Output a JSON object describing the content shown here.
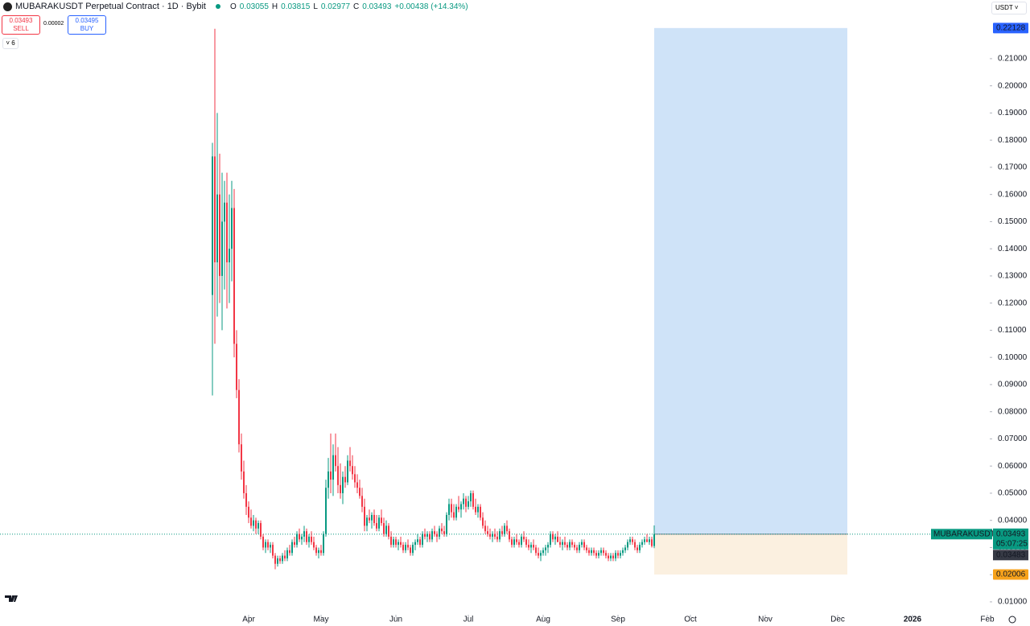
{
  "chart_data": {
    "type": "candlestick",
    "title": "MUBARAKUSDT Perpetual Contract · 1D · Bybit",
    "ohlc_keys": [
      "O",
      "H",
      "L",
      "C"
    ],
    "change": "+0.00438 (+14.34%)",
    "sell_label": "SELL",
    "buy_label": "BUY",
    "buy_price": 0.03495,
    "spread": "0.00002",
    "indicators_count": 6,
    "currency": "USDT",
    "symbol_label": "MUBARAKUSDT.P",
    "countdown": "05:07:25",
    "mark_price": 0.03483,
    "up_color": "#089981",
    "down_color": "#f23645",
    "x": [
      0,
      1,
      2,
      3,
      4,
      5,
      6,
      7,
      8,
      9,
      10,
      11,
      12,
      13,
      14,
      15,
      16,
      17,
      18,
      19,
      20,
      21,
      22,
      23,
      24,
      25,
      26,
      27,
      28,
      29,
      30,
      31,
      32,
      33,
      34,
      35,
      36,
      37,
      38,
      39,
      40,
      41,
      42,
      43,
      44,
      45,
      46,
      47,
      48,
      49,
      50,
      51,
      52,
      53,
      54,
      55,
      56,
      57,
      58,
      59,
      60,
      61,
      62,
      63,
      64,
      65,
      66,
      67,
      68,
      69,
      70,
      71,
      72,
      73,
      74,
      75,
      76,
      77,
      78,
      79,
      80,
      81,
      82,
      83,
      84,
      85,
      86,
      87,
      88,
      89,
      90,
      91,
      92,
      93,
      94,
      95,
      96,
      97,
      98,
      99,
      100,
      101,
      102,
      103,
      104,
      105,
      106,
      107,
      108,
      109,
      110,
      111,
      112,
      113,
      114,
      115,
      116,
      117,
      118,
      119,
      120,
      121,
      122,
      123,
      124,
      125,
      126,
      127,
      128,
      129,
      130,
      131,
      132,
      133,
      134,
      135,
      136,
      137,
      138,
      139,
      140,
      141,
      142,
      143,
      144,
      145,
      146,
      147,
      148,
      149,
      150,
      151,
      152,
      153,
      154,
      155,
      156,
      157,
      158,
      159,
      160,
      161,
      162,
      163,
      164,
      165,
      166,
      167,
      168,
      169,
      170,
      171,
      172,
      173,
      174,
      175,
      176,
      177,
      178,
      179,
      180,
      181,
      182,
      183
    ],
    "candles": [
      [
        0.123,
        0.179,
        0.086,
        0.174
      ],
      [
        0.174,
        0.221,
        0.105,
        0.135
      ],
      [
        0.135,
        0.19,
        0.115,
        0.16
      ],
      [
        0.16,
        0.175,
        0.12,
        0.13
      ],
      [
        0.13,
        0.168,
        0.11,
        0.15
      ],
      [
        0.15,
        0.165,
        0.125,
        0.157
      ],
      [
        0.157,
        0.168,
        0.118,
        0.135
      ],
      [
        0.135,
        0.16,
        0.12,
        0.14
      ],
      [
        0.14,
        0.165,
        0.128,
        0.155
      ],
      [
        0.155,
        0.162,
        0.1,
        0.105
      ],
      [
        0.105,
        0.11,
        0.085,
        0.088
      ],
      [
        0.088,
        0.092,
        0.065,
        0.068
      ],
      [
        0.068,
        0.072,
        0.055,
        0.058
      ],
      [
        0.058,
        0.062,
        0.048,
        0.05
      ],
      [
        0.05,
        0.053,
        0.042,
        0.045
      ],
      [
        0.045,
        0.047,
        0.039,
        0.041
      ],
      [
        0.041,
        0.044,
        0.037,
        0.038
      ],
      [
        0.038,
        0.042,
        0.036,
        0.04
      ],
      [
        0.04,
        0.041,
        0.035,
        0.037
      ],
      [
        0.037,
        0.04,
        0.035,
        0.039
      ],
      [
        0.039,
        0.04,
        0.033,
        0.034
      ],
      [
        0.034,
        0.035,
        0.029,
        0.03
      ],
      [
        0.03,
        0.033,
        0.028,
        0.032
      ],
      [
        0.032,
        0.033,
        0.029,
        0.03
      ],
      [
        0.03,
        0.032,
        0.028,
        0.031
      ],
      [
        0.031,
        0.032,
        0.026,
        0.027
      ],
      [
        0.027,
        0.028,
        0.022,
        0.024
      ],
      [
        0.024,
        0.027,
        0.023,
        0.026
      ],
      [
        0.026,
        0.027,
        0.024,
        0.025
      ],
      [
        0.025,
        0.028,
        0.024,
        0.027
      ],
      [
        0.027,
        0.029,
        0.025,
        0.026
      ],
      [
        0.026,
        0.03,
        0.025,
        0.029
      ],
      [
        0.029,
        0.031,
        0.027,
        0.028
      ],
      [
        0.028,
        0.033,
        0.027,
        0.032
      ],
      [
        0.032,
        0.034,
        0.03,
        0.031
      ],
      [
        0.031,
        0.036,
        0.03,
        0.035
      ],
      [
        0.035,
        0.037,
        0.032,
        0.033
      ],
      [
        0.033,
        0.035,
        0.031,
        0.034
      ],
      [
        0.034,
        0.038,
        0.032,
        0.036
      ],
      [
        0.036,
        0.037,
        0.031,
        0.032
      ],
      [
        0.032,
        0.035,
        0.03,
        0.034
      ],
      [
        0.034,
        0.036,
        0.031,
        0.032
      ],
      [
        0.032,
        0.034,
        0.029,
        0.03
      ],
      [
        0.03,
        0.031,
        0.027,
        0.028
      ],
      [
        0.028,
        0.03,
        0.026,
        0.029
      ],
      [
        0.029,
        0.031,
        0.027,
        0.028
      ],
      [
        0.028,
        0.036,
        0.027,
        0.035
      ],
      [
        0.035,
        0.055,
        0.034,
        0.052
      ],
      [
        0.052,
        0.063,
        0.048,
        0.058
      ],
      [
        0.058,
        0.072,
        0.05,
        0.055
      ],
      [
        0.055,
        0.068,
        0.049,
        0.064
      ],
      [
        0.064,
        0.072,
        0.058,
        0.06
      ],
      [
        0.06,
        0.067,
        0.05,
        0.053
      ],
      [
        0.053,
        0.061,
        0.048,
        0.05
      ],
      [
        0.05,
        0.058,
        0.046,
        0.056
      ],
      [
        0.056,
        0.06,
        0.052,
        0.054
      ],
      [
        0.054,
        0.064,
        0.053,
        0.062
      ],
      [
        0.062,
        0.067,
        0.058,
        0.06
      ],
      [
        0.06,
        0.064,
        0.055,
        0.057
      ],
      [
        0.057,
        0.06,
        0.052,
        0.054
      ],
      [
        0.054,
        0.057,
        0.05,
        0.052
      ],
      [
        0.052,
        0.055,
        0.048,
        0.049
      ],
      [
        0.049,
        0.052,
        0.043,
        0.045
      ],
      [
        0.045,
        0.048,
        0.036,
        0.038
      ],
      [
        0.038,
        0.042,
        0.036,
        0.041
      ],
      [
        0.041,
        0.044,
        0.039,
        0.04
      ],
      [
        0.04,
        0.043,
        0.037,
        0.042
      ],
      [
        0.042,
        0.044,
        0.038,
        0.039
      ],
      [
        0.039,
        0.042,
        0.036,
        0.037
      ],
      [
        0.037,
        0.042,
        0.036,
        0.041
      ],
      [
        0.041,
        0.044,
        0.038,
        0.039
      ],
      [
        0.039,
        0.041,
        0.034,
        0.035
      ],
      [
        0.035,
        0.04,
        0.034,
        0.038
      ],
      [
        0.038,
        0.039,
        0.033,
        0.034
      ],
      [
        0.034,
        0.036,
        0.03,
        0.031
      ],
      [
        0.031,
        0.034,
        0.03,
        0.033
      ],
      [
        0.033,
        0.034,
        0.03,
        0.031
      ],
      [
        0.031,
        0.033,
        0.029,
        0.032
      ],
      [
        0.032,
        0.034,
        0.03,
        0.031
      ],
      [
        0.031,
        0.032,
        0.028,
        0.029
      ],
      [
        0.029,
        0.032,
        0.028,
        0.031
      ],
      [
        0.031,
        0.033,
        0.029,
        0.03
      ],
      [
        0.03,
        0.031,
        0.027,
        0.028
      ],
      [
        0.028,
        0.032,
        0.027,
        0.031
      ],
      [
        0.031,
        0.033,
        0.029,
        0.032
      ],
      [
        0.032,
        0.035,
        0.031,
        0.033
      ],
      [
        0.033,
        0.034,
        0.03,
        0.031
      ],
      [
        0.031,
        0.036,
        0.03,
        0.035
      ],
      [
        0.035,
        0.037,
        0.033,
        0.034
      ],
      [
        0.034,
        0.036,
        0.032,
        0.035
      ],
      [
        0.035,
        0.036,
        0.032,
        0.033
      ],
      [
        0.033,
        0.037,
        0.032,
        0.036
      ],
      [
        0.036,
        0.038,
        0.034,
        0.035
      ],
      [
        0.035,
        0.036,
        0.032,
        0.034
      ],
      [
        0.034,
        0.038,
        0.033,
        0.037
      ],
      [
        0.037,
        0.039,
        0.035,
        0.036
      ],
      [
        0.036,
        0.038,
        0.034,
        0.035
      ],
      [
        0.035,
        0.043,
        0.034,
        0.042
      ],
      [
        0.042,
        0.048,
        0.04,
        0.046
      ],
      [
        0.046,
        0.048,
        0.041,
        0.043
      ],
      [
        0.043,
        0.046,
        0.04,
        0.041
      ],
      [
        0.041,
        0.046,
        0.04,
        0.045
      ],
      [
        0.045,
        0.049,
        0.043,
        0.044
      ],
      [
        0.044,
        0.047,
        0.041,
        0.046
      ],
      [
        0.046,
        0.05,
        0.044,
        0.048
      ],
      [
        0.048,
        0.049,
        0.043,
        0.045
      ],
      [
        0.045,
        0.049,
        0.044,
        0.047
      ],
      [
        0.047,
        0.051,
        0.045,
        0.05
      ],
      [
        0.05,
        0.051,
        0.044,
        0.045
      ],
      [
        0.045,
        0.048,
        0.042,
        0.043
      ],
      [
        0.043,
        0.046,
        0.041,
        0.045
      ],
      [
        0.045,
        0.046,
        0.04,
        0.041
      ],
      [
        0.041,
        0.043,
        0.037,
        0.038
      ],
      [
        0.038,
        0.04,
        0.035,
        0.036
      ],
      [
        0.036,
        0.038,
        0.034,
        0.035
      ],
      [
        0.035,
        0.037,
        0.033,
        0.034
      ],
      [
        0.034,
        0.036,
        0.032,
        0.035
      ],
      [
        0.035,
        0.037,
        0.033,
        0.034
      ],
      [
        0.034,
        0.036,
        0.032,
        0.033
      ],
      [
        0.033,
        0.037,
        0.032,
        0.036
      ],
      [
        0.036,
        0.038,
        0.034,
        0.035
      ],
      [
        0.035,
        0.039,
        0.034,
        0.038
      ],
      [
        0.038,
        0.04,
        0.035,
        0.036
      ],
      [
        0.036,
        0.037,
        0.032,
        0.033
      ],
      [
        0.033,
        0.034,
        0.03,
        0.031
      ],
      [
        0.031,
        0.034,
        0.03,
        0.033
      ],
      [
        0.033,
        0.035,
        0.031,
        0.032
      ],
      [
        0.032,
        0.033,
        0.03,
        0.031
      ],
      [
        0.031,
        0.035,
        0.03,
        0.034
      ],
      [
        0.034,
        0.036,
        0.032,
        0.033
      ],
      [
        0.033,
        0.034,
        0.03,
        0.031
      ],
      [
        0.031,
        0.033,
        0.029,
        0.03
      ],
      [
        0.03,
        0.032,
        0.028,
        0.031
      ],
      [
        0.031,
        0.033,
        0.029,
        0.03
      ],
      [
        0.03,
        0.031,
        0.027,
        0.028
      ],
      [
        0.028,
        0.03,
        0.026,
        0.027
      ],
      [
        0.027,
        0.029,
        0.025,
        0.028
      ],
      [
        0.028,
        0.03,
        0.027,
        0.029
      ],
      [
        0.029,
        0.031,
        0.027,
        0.03
      ],
      [
        0.03,
        0.032,
        0.028,
        0.031
      ],
      [
        0.031,
        0.036,
        0.03,
        0.035
      ],
      [
        0.035,
        0.036,
        0.032,
        0.033
      ],
      [
        0.033,
        0.035,
        0.031,
        0.034
      ],
      [
        0.034,
        0.036,
        0.032,
        0.032
      ],
      [
        0.032,
        0.034,
        0.03,
        0.031
      ],
      [
        0.031,
        0.033,
        0.029,
        0.032
      ],
      [
        0.032,
        0.034,
        0.03,
        0.031
      ],
      [
        0.031,
        0.032,
        0.029,
        0.03
      ],
      [
        0.03,
        0.033,
        0.029,
        0.032
      ],
      [
        0.032,
        0.033,
        0.03,
        0.031
      ],
      [
        0.031,
        0.032,
        0.029,
        0.03
      ],
      [
        0.03,
        0.031,
        0.028,
        0.029
      ],
      [
        0.029,
        0.032,
        0.028,
        0.031
      ],
      [
        0.031,
        0.033,
        0.03,
        0.032
      ],
      [
        0.032,
        0.033,
        0.029,
        0.03
      ],
      [
        0.03,
        0.031,
        0.028,
        0.029
      ],
      [
        0.029,
        0.03,
        0.027,
        0.028
      ],
      [
        0.028,
        0.03,
        0.027,
        0.029
      ],
      [
        0.029,
        0.03,
        0.027,
        0.028
      ],
      [
        0.028,
        0.029,
        0.026,
        0.027
      ],
      [
        0.027,
        0.029,
        0.026,
        0.028
      ],
      [
        0.028,
        0.03,
        0.027,
        0.029
      ],
      [
        0.029,
        0.03,
        0.027,
        0.028
      ],
      [
        0.028,
        0.029,
        0.026,
        0.027
      ],
      [
        0.027,
        0.028,
        0.025,
        0.026
      ],
      [
        0.026,
        0.028,
        0.025,
        0.027
      ],
      [
        0.027,
        0.028,
        0.025,
        0.026
      ],
      [
        0.026,
        0.029,
        0.025,
        0.028
      ],
      [
        0.028,
        0.029,
        0.026,
        0.027
      ],
      [
        0.027,
        0.029,
        0.026,
        0.028
      ],
      [
        0.028,
        0.03,
        0.027,
        0.029
      ],
      [
        0.029,
        0.031,
        0.028,
        0.03
      ],
      [
        0.03,
        0.033,
        0.029,
        0.032
      ],
      [
        0.032,
        0.034,
        0.031,
        0.033
      ],
      [
        0.033,
        0.034,
        0.031,
        0.032
      ],
      [
        0.032,
        0.033,
        0.029,
        0.03
      ],
      [
        0.03,
        0.031,
        0.028,
        0.029
      ],
      [
        0.029,
        0.032,
        0.028,
        0.031
      ],
      [
        0.031,
        0.033,
        0.03,
        0.032
      ],
      [
        0.032,
        0.034,
        0.031,
        0.033
      ],
      [
        0.033,
        0.035,
        0.032,
        0.032
      ],
      [
        0.032,
        0.034,
        0.031,
        0.033
      ],
      [
        0.033,
        0.034,
        0.03,
        0.03055
      ],
      [
        0.03055,
        0.03815,
        0.02977,
        0.03493
      ]
    ],
    "position": {
      "entry": 0.0349,
      "target": 0.22128,
      "stop": 0.02006,
      "x": [
        183,
        263
      ],
      "target_color": "#cfe3f8",
      "stop_color": "#fbf0e0"
    },
    "xlim": [
      -88,
      322
    ],
    "xticks": [
      {
        "value": 15,
        "label": "Apr"
      },
      {
        "value": 45,
        "label": "May"
      },
      {
        "value": 76,
        "label": "Jun"
      },
      {
        "value": 106,
        "label": "Jul"
      },
      {
        "value": 137,
        "label": "Aug"
      },
      {
        "value": 168,
        "label": "Sep"
      },
      {
        "value": 198,
        "label": "Oct"
      },
      {
        "value": 229,
        "label": "Nov"
      },
      {
        "value": 259,
        "label": "Dec"
      },
      {
        "value": 290,
        "label": "2026"
      },
      {
        "value": 321,
        "label": "Feb"
      }
    ],
    "ylim": [
      0.0011,
      0.2316
    ],
    "yticks": [
      {
        "value": 0.01,
        "label": "0.01000"
      },
      {
        "value": 0.02,
        "label": "0.02000"
      },
      {
        "value": 0.03,
        "label": "0.03000"
      },
      {
        "value": 0.04,
        "label": "0.04000"
      },
      {
        "value": 0.05,
        "label": "0.05000"
      },
      {
        "value": 0.06,
        "label": "0.06000"
      },
      {
        "value": 0.07,
        "label": "0.07000"
      },
      {
        "value": 0.08,
        "label": "0.08000"
      },
      {
        "value": 0.09,
        "label": "0.09000"
      },
      {
        "value": 0.1,
        "label": "0.10000"
      },
      {
        "value": 0.11,
        "label": "0.11000"
      },
      {
        "value": 0.12,
        "label": "0.12000"
      },
      {
        "value": 0.13,
        "label": "0.13000"
      },
      {
        "value": 0.14,
        "label": "0.14000"
      },
      {
        "value": 0.15,
        "label": "0.15000"
      },
      {
        "value": 0.16,
        "label": "0.16000"
      },
      {
        "value": 0.17,
        "label": "0.17000"
      },
      {
        "value": 0.18,
        "label": "0.18000"
      },
      {
        "value": 0.19,
        "label": "0.19000"
      },
      {
        "value": 0.2,
        "label": "0.20000"
      },
      {
        "value": 0.21,
        "label": "0.21000"
      }
    ],
    "grid": false
  }
}
